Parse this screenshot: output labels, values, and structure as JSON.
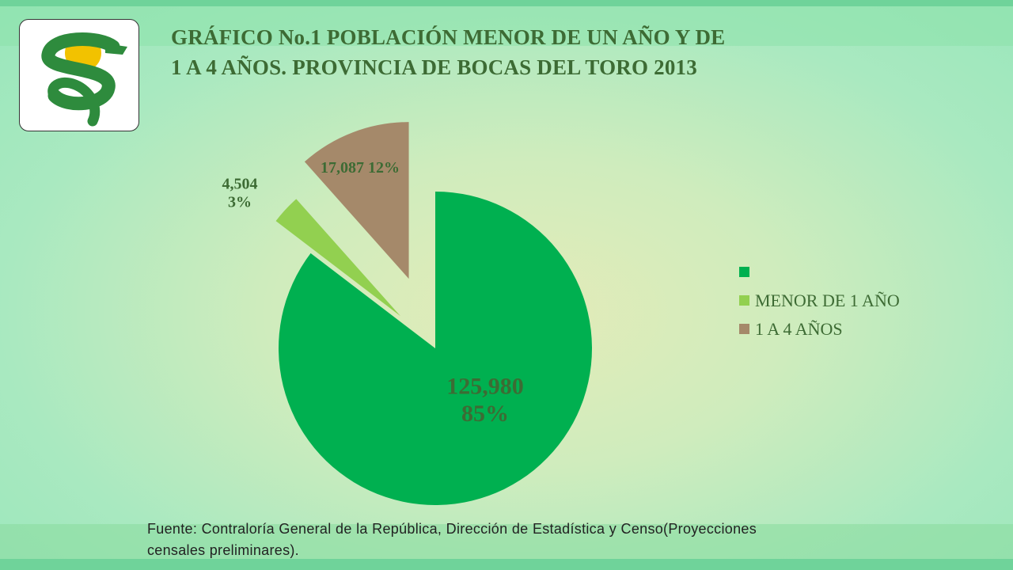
{
  "title": "GRÁFICO No.1 POBLACIÓN MENOR DE UN AÑO Y DE\n 1 A 4 AÑOS. PROVINCIA DE BOCAS DEL TORO 2013",
  "colors": {
    "series_1": "#00b050",
    "series_2": "#92d050",
    "series_3": "#a5896a",
    "logo_green": "#2e8b3d",
    "logo_yellow": "#f2c200"
  },
  "icons": {
    "logo": "caduceus-snake-logo"
  },
  "chart_data": {
    "type": "pie",
    "exploded": true,
    "title": "GRÁFICO No.1 POBLACIÓN MENOR DE UN AÑO Y DE 1 A 4 AÑOS. PROVINCIA DE BOCAS DEL TORO 2013",
    "slices": [
      {
        "label": "",
        "value": 125980,
        "percent": 85,
        "value_label": "125,980",
        "percent_label": "85%",
        "color": "#00b050"
      },
      {
        "label": "MENOR DE 1 AÑO",
        "value": 4504,
        "percent": 3,
        "value_label": "4,504",
        "percent_label": "3%",
        "color": "#92d050"
      },
      {
        "label": "1 A 4 AÑOS",
        "value": 17087,
        "percent": 12,
        "value_label": "17,087",
        "percent_label": "12%",
        "color": "#a5896a"
      }
    ],
    "legend_position": "right"
  },
  "source": "Fuente: Contraloría General de la República, Dirección de Estadística y Censo(Proyecciones censales preliminares)."
}
